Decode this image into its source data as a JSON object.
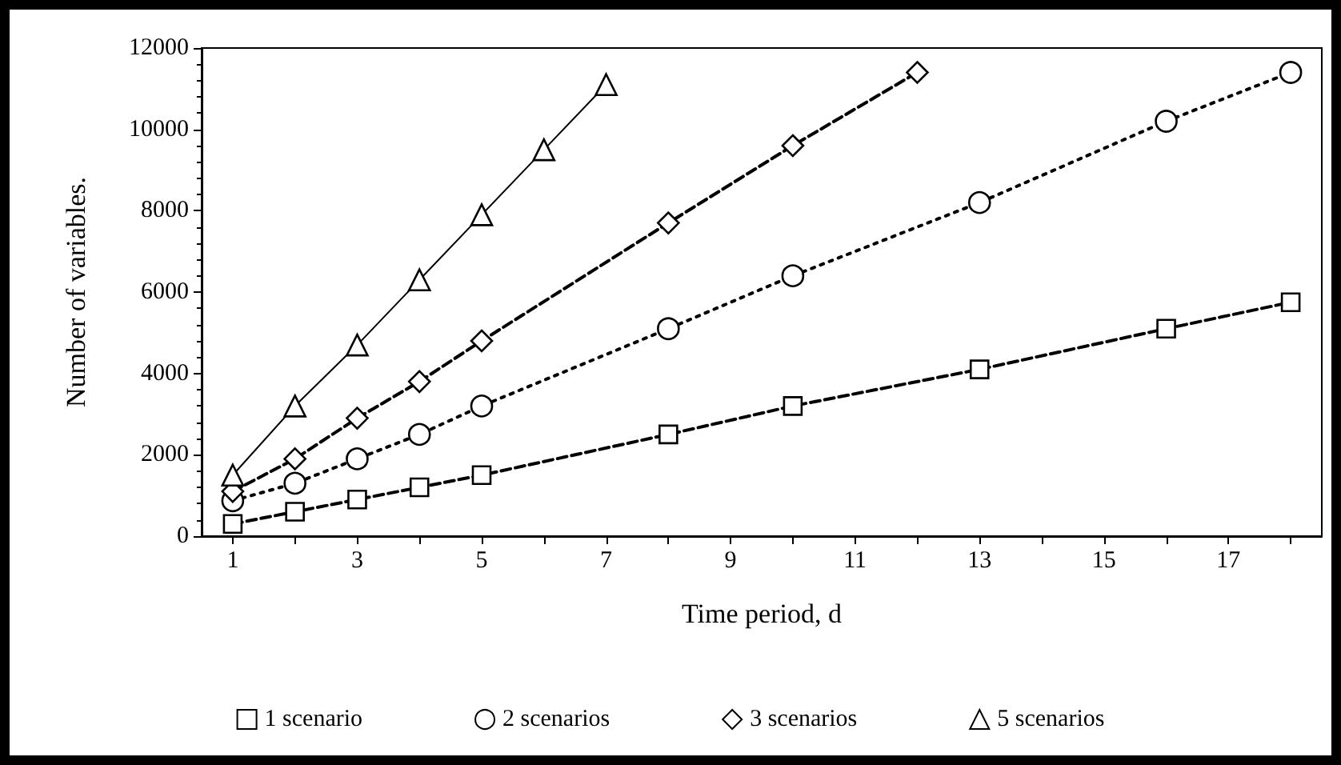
{
  "chart_data": {
    "type": "line",
    "xlabel": "Time period, d",
    "ylabel": "Number of variables.",
    "xlim": [
      0.5,
      18.5
    ],
    "xticks": [
      {
        "value": 1,
        "label": "1"
      },
      {
        "value": 2,
        "label": null
      },
      {
        "value": 3,
        "label": "3"
      },
      {
        "value": 4,
        "label": null
      },
      {
        "value": 5,
        "label": "5"
      },
      {
        "value": 6,
        "label": null
      },
      {
        "value": 7,
        "label": "7"
      },
      {
        "value": 8,
        "label": null
      },
      {
        "value": 9,
        "label": "9"
      },
      {
        "value": 10,
        "label": null
      },
      {
        "value": 11,
        "label": "11"
      },
      {
        "value": 12,
        "label": null
      },
      {
        "value": 13,
        "label": "13"
      },
      {
        "value": 14,
        "label": null
      },
      {
        "value": 15,
        "label": "15"
      },
      {
        "value": 16,
        "label": null
      },
      {
        "value": 17,
        "label": "17"
      },
      {
        "value": 18,
        "label": null
      }
    ],
    "ylim": [
      0,
      12000
    ],
    "yticks": [
      0,
      2000,
      4000,
      6000,
      8000,
      10000,
      12000
    ],
    "grid": false,
    "legend": "bottom",
    "series": [
      {
        "name": "1 scenario",
        "color": "#000000",
        "marker": "square",
        "line_style": "dashed",
        "x": [
          1,
          2,
          3,
          4,
          5,
          8,
          10,
          13,
          16,
          18
        ],
        "values": [
          300,
          600,
          900,
          1200,
          1500,
          2500,
          3200,
          4100,
          5100,
          5750
        ]
      },
      {
        "name": "2 scenarios",
        "color": "#000000",
        "marker": "circle",
        "line_style": "dotted",
        "x": [
          1,
          2,
          3,
          4,
          5,
          8,
          10,
          13,
          16,
          18
        ],
        "values": [
          870,
          1300,
          1900,
          2500,
          3200,
          5100,
          6400,
          8200,
          10200,
          11400
        ]
      },
      {
        "name": "3 scenarios",
        "color": "#000000",
        "marker": "diamond",
        "line_style": "dashed",
        "x": [
          1,
          2,
          3,
          4,
          5,
          8,
          10,
          12
        ],
        "values": [
          1100,
          1900,
          2900,
          3800,
          4800,
          7700,
          9600,
          11400
        ]
      },
      {
        "name": "5 scenarios",
        "color": "#000000",
        "marker": "triangle",
        "line_style": "solid",
        "x": [
          1,
          2,
          3,
          4,
          5,
          6,
          7
        ],
        "values": [
          1500,
          3200,
          4700,
          6300,
          7900,
          9500,
          11100
        ]
      }
    ]
  }
}
